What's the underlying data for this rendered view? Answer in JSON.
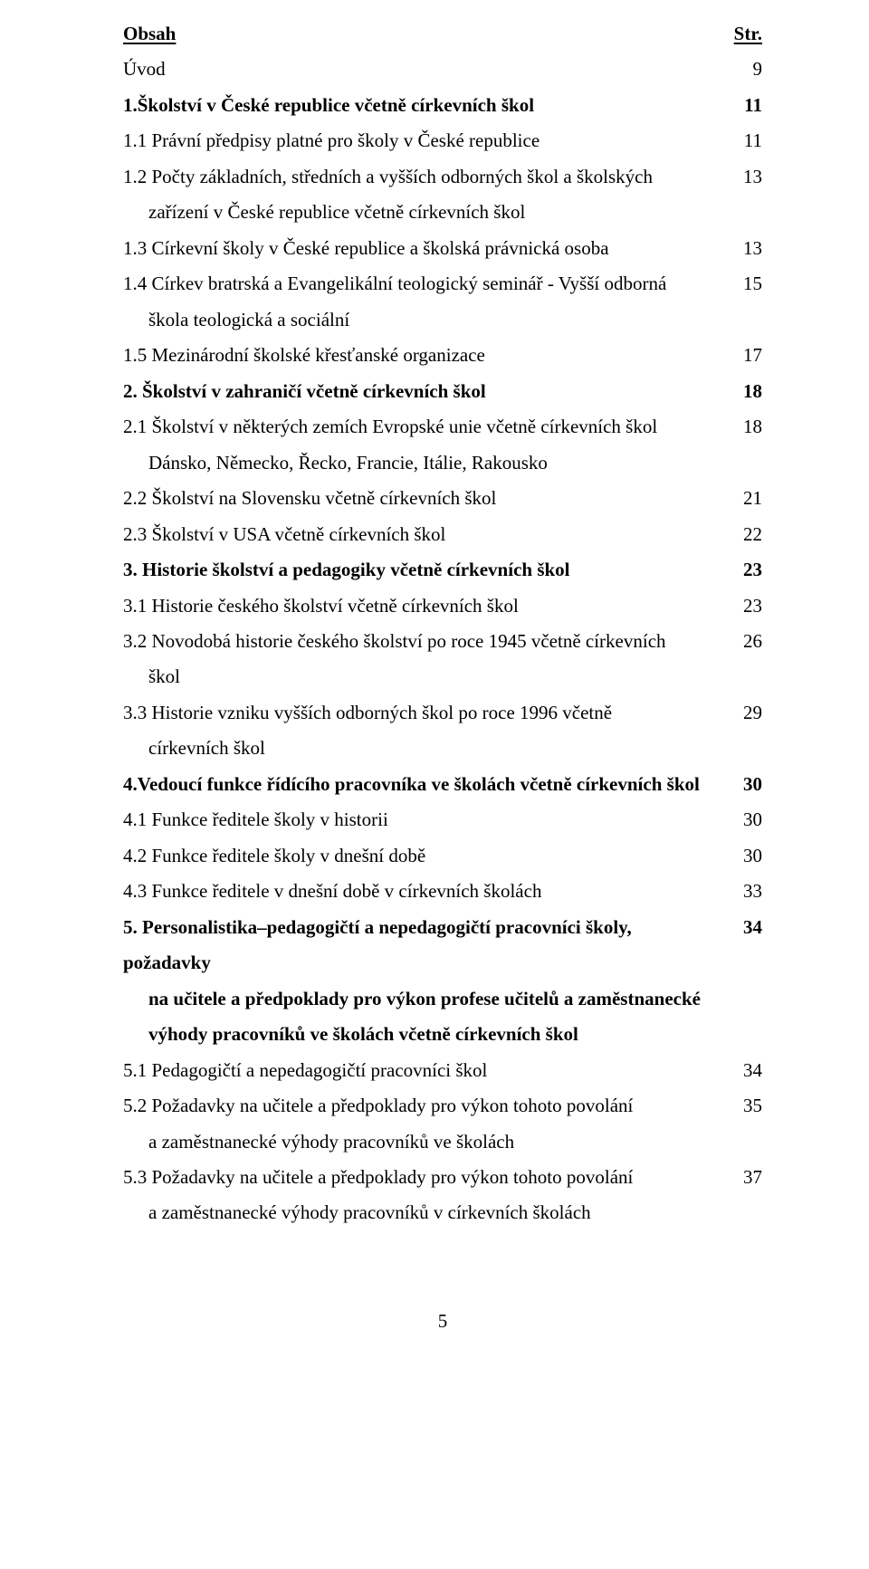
{
  "header": {
    "left": "Obsah",
    "right": "Str."
  },
  "toc": [
    {
      "label": "Úvod",
      "page": "9",
      "bold": false,
      "indent": 0
    },
    {
      "label": "1.Školství v České republice včetně církevních škol",
      "page": "11",
      "bold": true,
      "indent": 0
    },
    {
      "label": "1.1 Právní předpisy platné pro školy v České republice",
      "page": "11",
      "bold": false,
      "indent": 0
    },
    {
      "label": "1.2 Počty základních, středních a vyšších odborných škol a školských",
      "page": "13",
      "bold": false,
      "indent": 0,
      "cont": [
        {
          "text": "zařízení v České  republice včetně církevních škol",
          "indent": 1
        }
      ]
    },
    {
      "label": "1.3 Církevní školy v České republice a školská právnická osoba",
      "page": "13",
      "bold": false,
      "indent": 0
    },
    {
      "label": "1.4 Církev bratrská a Evangelikální teologický seminář - Vyšší odborná",
      "page": "15",
      "bold": false,
      "indent": 0,
      "cont": [
        {
          "text": "škola teologická a sociální",
          "indent": 1
        }
      ]
    },
    {
      "label": "1.5 Mezinárodní školské křesťanské organizace",
      "page": "17",
      "bold": false,
      "indent": 0
    },
    {
      "label": "2. Školství v zahraničí včetně církevních škol",
      "page": "18",
      "bold": true,
      "indent": 0
    },
    {
      "label": "2.1 Školství v některých zemích Evropské unie včetně církevních škol",
      "page": "18",
      "bold": false,
      "indent": 0,
      "cont": [
        {
          "text": "Dánsko, Německo, Řecko, Francie, Itálie, Rakousko",
          "indent": 1
        }
      ]
    },
    {
      "label": "2.2 Školství na Slovensku včetně církevních škol",
      "page": "21",
      "bold": false,
      "indent": 0
    },
    {
      "label": "2.3 Školství v USA včetně církevních škol",
      "page": "22",
      "bold": false,
      "indent": 0
    },
    {
      "label": "3. Historie školství a pedagogiky  včetně církevních škol",
      "page": "23",
      "bold": true,
      "indent": 0
    },
    {
      "label": "3.1 Historie českého školství včetně církevních škol",
      "page": "23",
      "bold": false,
      "indent": 0
    },
    {
      "label": "3.2 Novodobá historie českého školství po roce 1945 včetně církevních",
      "page": "26",
      "bold": false,
      "indent": 0,
      "cont": [
        {
          "text": "škol",
          "indent": 1
        }
      ]
    },
    {
      "label": "3.3 Historie vzniku vyšších odborných škol po roce 1996 včetně",
      "page": "29",
      "bold": false,
      "indent": 0,
      "cont": [
        {
          "text": "církevních škol",
          "indent": 1
        }
      ]
    },
    {
      "label": "4.Vedoucí funkce řídícího pracovníka ve školách  včetně církevních škol",
      "page": "30",
      "bold": true,
      "indent": 0
    },
    {
      "label": "4.1  Funkce ředitele školy v historii",
      "page": "30",
      "bold": false,
      "indent": 0
    },
    {
      "label": "4.2  Funkce ředitele školy v dnešní době",
      "page": "30",
      "bold": false,
      "indent": 0
    },
    {
      "label": "4.3  Funkce ředitele v dnešní době v církevních školách",
      "page": "33",
      "bold": false,
      "indent": 0
    },
    {
      "label": "5. Personalistika–pedagogičtí a nepedagogičtí pracovníci školy, požadavky",
      "page": "34",
      "bold": true,
      "indent": 0,
      "cont": [
        {
          "text": "na učitele a předpoklady pro výkon profese učitelů a zaměstnanecké",
          "indent": 1,
          "bold": true
        },
        {
          "text": "výhody pracovníků ve školách včetně církevních škol",
          "indent": 1,
          "bold": true
        }
      ]
    },
    {
      "label": "5.1  Pedagogičtí a nepedagogičtí pracovníci škol",
      "page": "34",
      "bold": false,
      "indent": 0
    },
    {
      "label": "5.2  Požadavky na učitele a předpoklady pro výkon tohoto povolání",
      "page": "35",
      "bold": false,
      "indent": 0,
      "cont": [
        {
          "text": "a zaměstnanecké výhody pracovníků ve školách",
          "indent": 1
        }
      ]
    },
    {
      "label": "5.3  Požadavky na učitele a předpoklady pro výkon tohoto povolání",
      "page": "37",
      "bold": false,
      "indent": 0,
      "cont": [
        {
          "text": "a zaměstnanecké výhody pracovníků v církevních školách",
          "indent": 1
        }
      ]
    }
  ],
  "footer": {
    "page_number": "5"
  }
}
